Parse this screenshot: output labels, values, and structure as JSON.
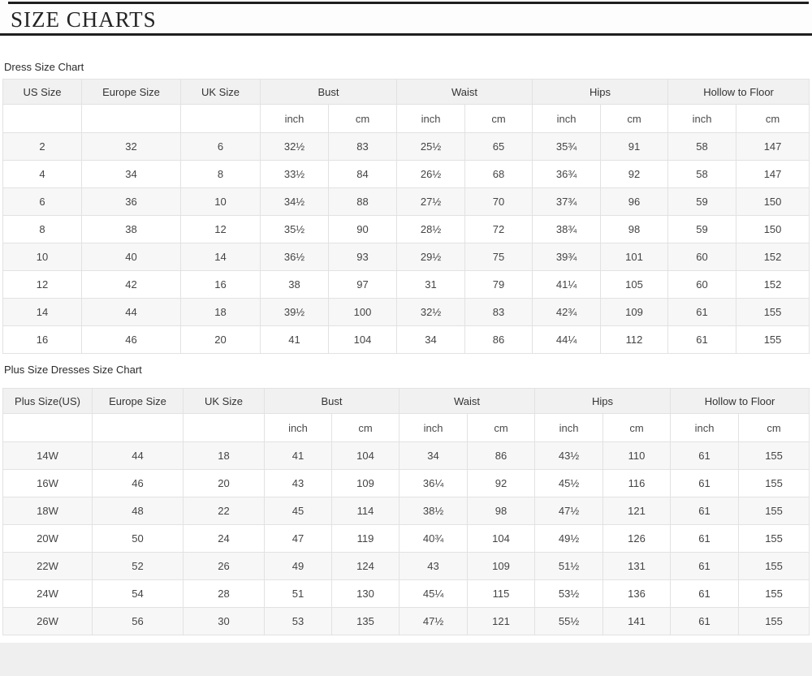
{
  "header": {
    "title": "SIZE CHARTS"
  },
  "tables": [
    {
      "label": "Dress Size Chart",
      "group_headers": [
        {
          "label": "US Size",
          "span": 1
        },
        {
          "label": "Europe Size",
          "span": 1
        },
        {
          "label": "UK Size",
          "span": 1
        },
        {
          "label": "Bust",
          "span": 2
        },
        {
          "label": "Waist",
          "span": 2
        },
        {
          "label": "Hips",
          "span": 2
        },
        {
          "label": "Hollow to Floor",
          "span": 2
        }
      ],
      "unit_headers": [
        "",
        "",
        "",
        "inch",
        "cm",
        "inch",
        "cm",
        "inch",
        "cm",
        "inch",
        "cm"
      ],
      "rows": [
        [
          "2",
          "32",
          "6",
          "32½",
          "83",
          "25½",
          "65",
          "35¾",
          "91",
          "58",
          "147"
        ],
        [
          "4",
          "34",
          "8",
          "33½",
          "84",
          "26½",
          "68",
          "36¾",
          "92",
          "58",
          "147"
        ],
        [
          "6",
          "36",
          "10",
          "34½",
          "88",
          "27½",
          "70",
          "37¾",
          "96",
          "59",
          "150"
        ],
        [
          "8",
          "38",
          "12",
          "35½",
          "90",
          "28½",
          "72",
          "38¾",
          "98",
          "59",
          "150"
        ],
        [
          "10",
          "40",
          "14",
          "36½",
          "93",
          "29½",
          "75",
          "39¾",
          "101",
          "60",
          "152"
        ],
        [
          "12",
          "42",
          "16",
          "38",
          "97",
          "31",
          "79",
          "41¼",
          "105",
          "60",
          "152"
        ],
        [
          "14",
          "44",
          "18",
          "39½",
          "100",
          "32½",
          "83",
          "42¾",
          "109",
          "61",
          "155"
        ],
        [
          "16",
          "46",
          "20",
          "41",
          "104",
          "34",
          "86",
          "44¼",
          "112",
          "61",
          "155"
        ]
      ]
    },
    {
      "label": "Plus Size Dresses Size Chart",
      "group_headers": [
        {
          "label": "Plus Size(US)",
          "span": 1
        },
        {
          "label": "Europe Size",
          "span": 1
        },
        {
          "label": "UK Size",
          "span": 1
        },
        {
          "label": "Bust",
          "span": 2
        },
        {
          "label": "Waist",
          "span": 2
        },
        {
          "label": "Hips",
          "span": 2
        },
        {
          "label": "Hollow to Floor",
          "span": 2
        }
      ],
      "unit_headers": [
        "",
        "",
        "",
        "inch",
        "cm",
        "inch",
        "cm",
        "inch",
        "cm",
        "inch",
        "cm"
      ],
      "rows": [
        [
          "14W",
          "44",
          "18",
          "41",
          "104",
          "34",
          "86",
          "43½",
          "110",
          "61",
          "155"
        ],
        [
          "16W",
          "46",
          "20",
          "43",
          "109",
          "36¼",
          "92",
          "45½",
          "116",
          "61",
          "155"
        ],
        [
          "18W",
          "48",
          "22",
          "45",
          "114",
          "38½",
          "98",
          "47½",
          "121",
          "61",
          "155"
        ],
        [
          "20W",
          "50",
          "24",
          "47",
          "119",
          "40¾",
          "104",
          "49½",
          "126",
          "61",
          "155"
        ],
        [
          "22W",
          "52",
          "26",
          "49",
          "124",
          "43",
          "109",
          "51½",
          "131",
          "61",
          "155"
        ],
        [
          "24W",
          "54",
          "28",
          "51",
          "130",
          "45¼",
          "115",
          "53½",
          "136",
          "61",
          "155"
        ],
        [
          "26W",
          "56",
          "30",
          "53",
          "135",
          "47½",
          "121",
          "55½",
          "141",
          "61",
          "155"
        ]
      ]
    }
  ],
  "colors": {
    "rule_dark": "#1f1f1f",
    "table_border": "#e2e2e2",
    "header_bg": "#f1f1f1",
    "alt_row_bg": "#f7f7f7",
    "footer_bg": "#efeff0"
  }
}
